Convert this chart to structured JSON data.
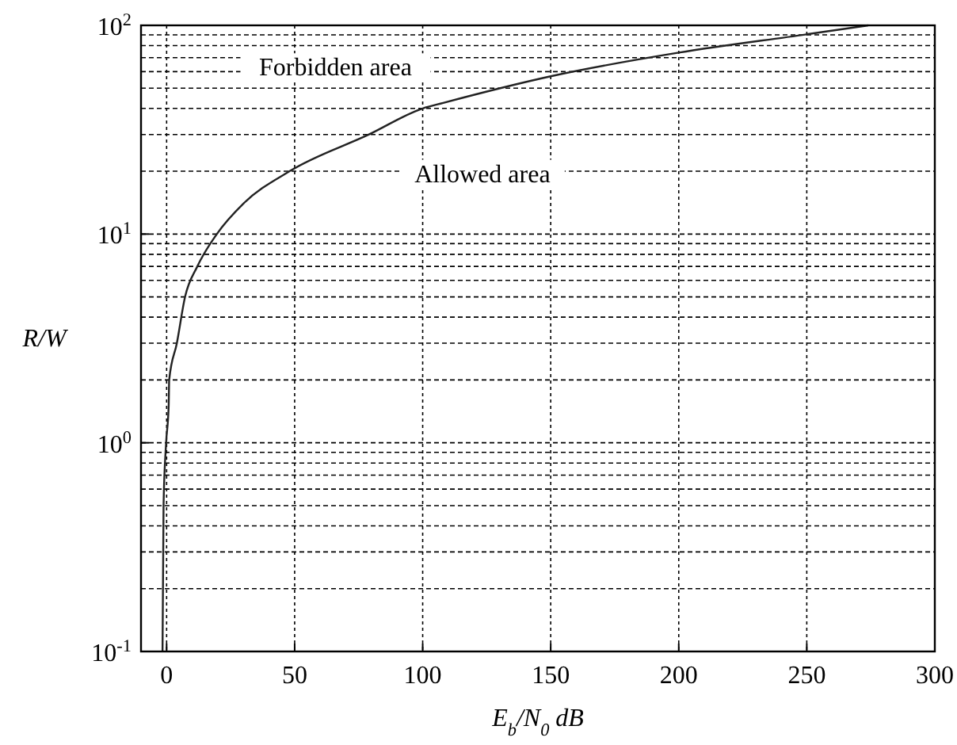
{
  "chart_data": {
    "type": "line",
    "xlabel": "E$_{b}$/N$_{0}$ dB",
    "ylabel": "R/W",
    "log": "y",
    "grid": true,
    "line_style": "solid",
    "xlim": [
      -10,
      300
    ],
    "xticks": [
      0,
      50,
      100,
      150,
      200,
      250,
      300
    ],
    "ylim": [
      0.1,
      100
    ],
    "yticks": [
      {
        "value": 0.1,
        "label": "10$^{-1}$"
      },
      {
        "value": 1,
        "label": "10$^{0}$"
      },
      {
        "value": 10,
        "label": "10$^{1}$"
      },
      {
        "value": 100,
        "label": "10$^{2}$"
      }
    ],
    "annotations": [
      "Forbidden area",
      "Allowed area"
    ],
    "series": [
      {
        "color": "#222222",
        "x": [
          -1.6,
          -1.2,
          -0.2,
          0.8,
          1,
          4,
          7.2,
          12,
          19.6,
          30,
          48,
          79,
          100,
          108,
          150,
          200,
          250,
          274
        ],
        "values": [
          0.1,
          0.5,
          1,
          1.5,
          2,
          3,
          5,
          7,
          10,
          14,
          20,
          30,
          40,
          42.5,
          57,
          74,
          90.6,
          100
        ]
      }
    ]
  }
}
